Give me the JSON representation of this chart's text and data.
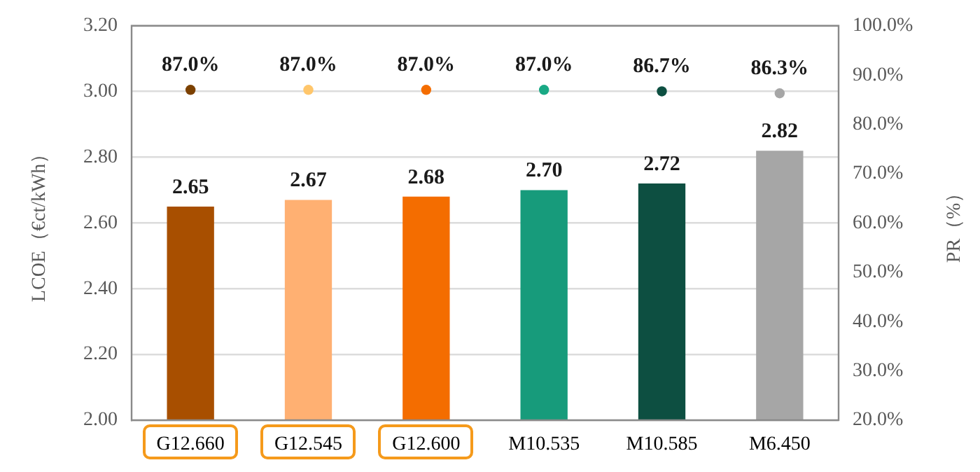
{
  "chart_data": {
    "type": "bar",
    "ylabel": "LCOE（€ct/kWh）",
    "y2label": "PR（%）",
    "categories": [
      "G12.660",
      "G12.545",
      "G12.600",
      "M10.535",
      "M10.585",
      "M6.450"
    ],
    "series": [
      {
        "colors": [
          "#a84f00",
          "#ffb072",
          "#f46d00",
          "#179b7b",
          "#0d4f41",
          "#a6a6a6"
        ],
        "values": [
          2.65,
          2.67,
          2.68,
          2.7,
          2.72,
          2.82
        ],
        "value_labels": [
          "2.65",
          "2.67",
          "2.68",
          "2.70",
          "2.72",
          "2.82"
        ]
      },
      {
        "type": "scatter",
        "axis": "y2",
        "marker": "circle",
        "x": [
          "G12.660",
          "G12.545",
          "G12.600",
          "M10.535",
          "M10.585",
          "M6.450"
        ],
        "colors": [
          "#7c4100",
          "#ffc66b",
          "#f46d00",
          "#1aa985",
          "#0d4f41",
          "#a6a6a6"
        ],
        "values": [
          87.0,
          87.0,
          87.0,
          87.0,
          86.7,
          86.3
        ],
        "value_labels": [
          "87.0%",
          "87.0%",
          "87.0%",
          "87.0%",
          "86.7%",
          "86.3%"
        ]
      }
    ],
    "ylim": [
      2.0,
      3.2
    ],
    "yticks": [
      {
        "value": 2.0,
        "label": "2.00"
      },
      {
        "value": 2.2,
        "label": "2.20"
      },
      {
        "value": 2.4,
        "label": "2.40"
      },
      {
        "value": 2.6,
        "label": "2.60"
      },
      {
        "value": 2.8,
        "label": "2.80"
      },
      {
        "value": 3.0,
        "label": "3.00"
      },
      {
        "value": 3.2,
        "label": "3.20"
      }
    ],
    "y2lim": [
      20,
      100
    ],
    "y2ticks": [
      {
        "value": 20,
        "label": "20.0%"
      },
      {
        "value": 30,
        "label": "30.0%"
      },
      {
        "value": 40,
        "label": "40.0%"
      },
      {
        "value": 50,
        "label": "50.0%"
      },
      {
        "value": 60,
        "label": "60.0%"
      },
      {
        "value": 70,
        "label": "70.0%"
      },
      {
        "value": 80,
        "label": "80.0%"
      },
      {
        "value": 90,
        "label": "90.0%"
      },
      {
        "value": 100,
        "label": "100.0%"
      }
    ],
    "grid": "y",
    "legend": false
  }
}
